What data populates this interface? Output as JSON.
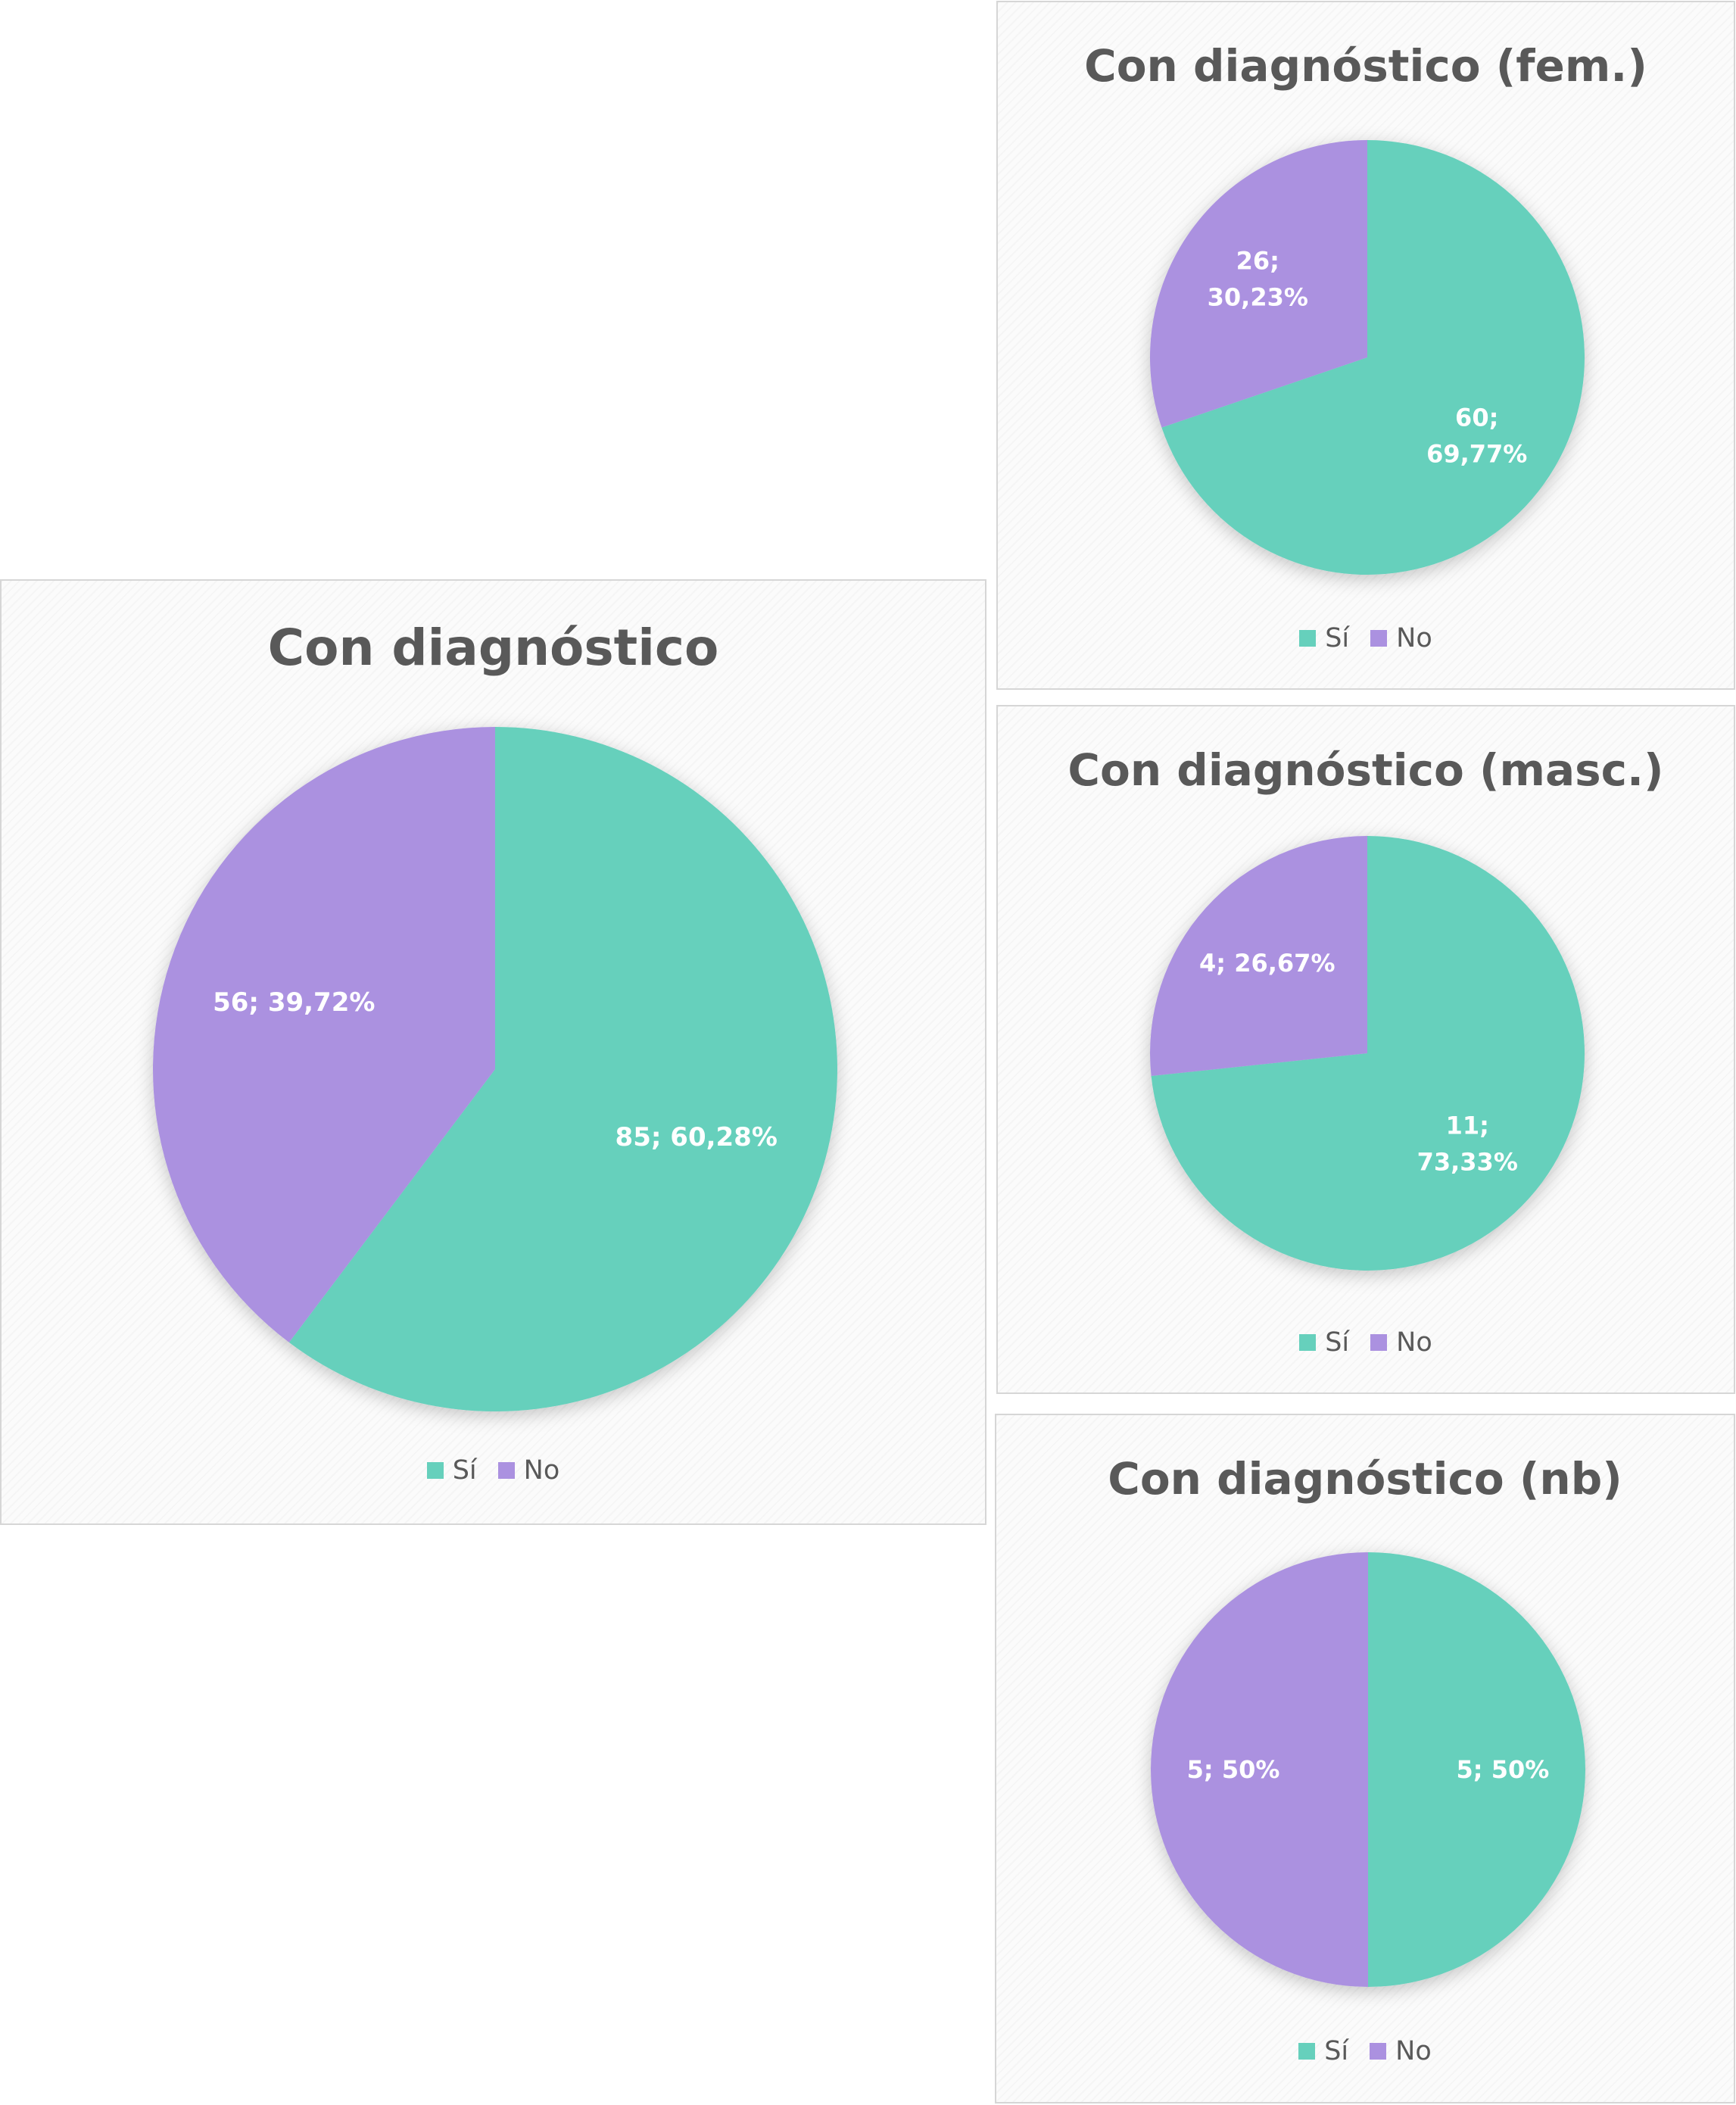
{
  "colors": {
    "si": "#66d0bc",
    "no": "#ab91e0"
  },
  "chart_data": [
    {
      "type": "pie",
      "title": "Con diagnóstico",
      "categories": [
        "Sí",
        "No"
      ],
      "values": [
        85,
        56
      ],
      "labels": [
        "85; 60,28%",
        "56; 39,72%"
      ],
      "legend": "bottom",
      "legend_labels": [
        "Sí",
        "No"
      ]
    },
    {
      "type": "pie",
      "title": "Con diagnóstico (fem.)",
      "categories": [
        "Sí",
        "No"
      ],
      "values": [
        60,
        26
      ],
      "labels": [
        "60;\n69,77%",
        "26;\n30,23%"
      ],
      "legend": "bottom",
      "legend_labels": [
        "Sí",
        "No"
      ]
    },
    {
      "type": "pie",
      "title": "Con diagnóstico (masc.)",
      "categories": [
        "Sí",
        "No"
      ],
      "values": [
        11,
        4
      ],
      "labels": [
        "11;\n73,33%",
        "4; 26,67%"
      ],
      "legend": "bottom",
      "legend_labels": [
        "Sí",
        "No"
      ]
    },
    {
      "type": "pie",
      "title": "Con diagnóstico (nb)",
      "categories": [
        "Sí",
        "No"
      ],
      "values": [
        5,
        5
      ],
      "labels": [
        "5; 50%",
        "5; 50%"
      ],
      "legend": "bottom",
      "legend_labels": [
        "Sí",
        "No"
      ]
    }
  ]
}
